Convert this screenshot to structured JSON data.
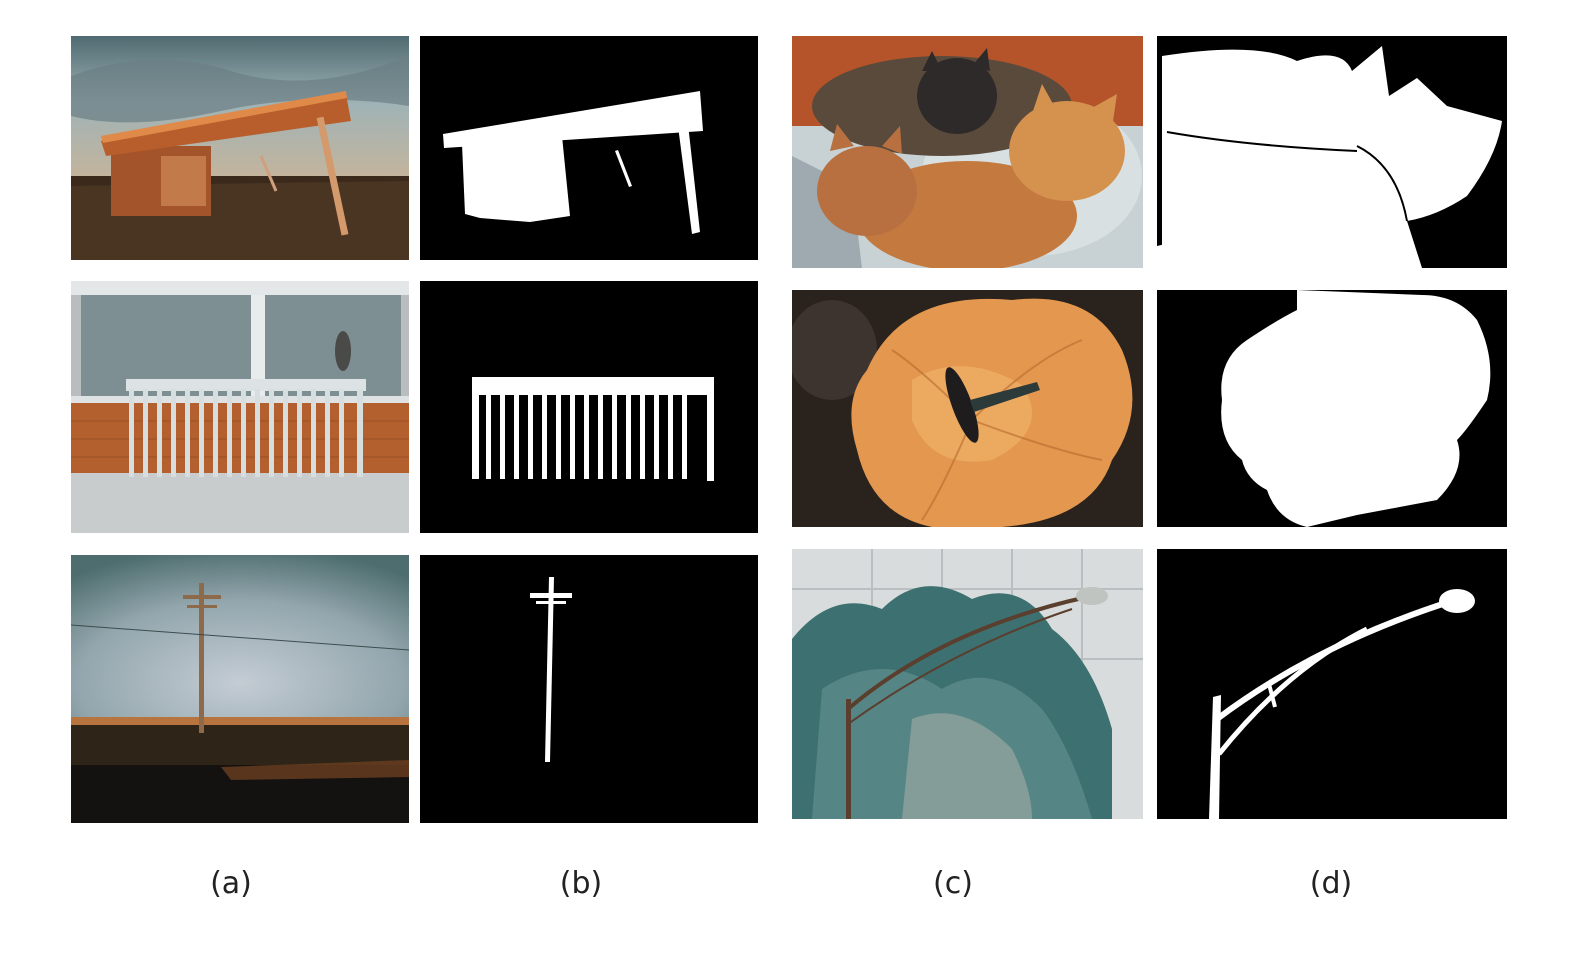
{
  "figure": {
    "captions": {
      "a": "(a)",
      "b": "(b)",
      "c": "(c)",
      "d": "(d)"
    },
    "panels": {
      "a": [
        "photo-bus-shelter",
        "photo-bike-rack",
        "photo-utility-pole"
      ],
      "b": [
        "mask-bus-shelter",
        "mask-bike-rack",
        "mask-utility-pole"
      ],
      "c": [
        "photo-cats",
        "photo-butterfly-flower",
        "photo-street-lamp"
      ],
      "d": [
        "mask-cats",
        "mask-flower",
        "mask-street-lamp"
      ]
    },
    "colors": {
      "mask_foreground": "#ffffff",
      "mask_background": "#000000"
    }
  }
}
